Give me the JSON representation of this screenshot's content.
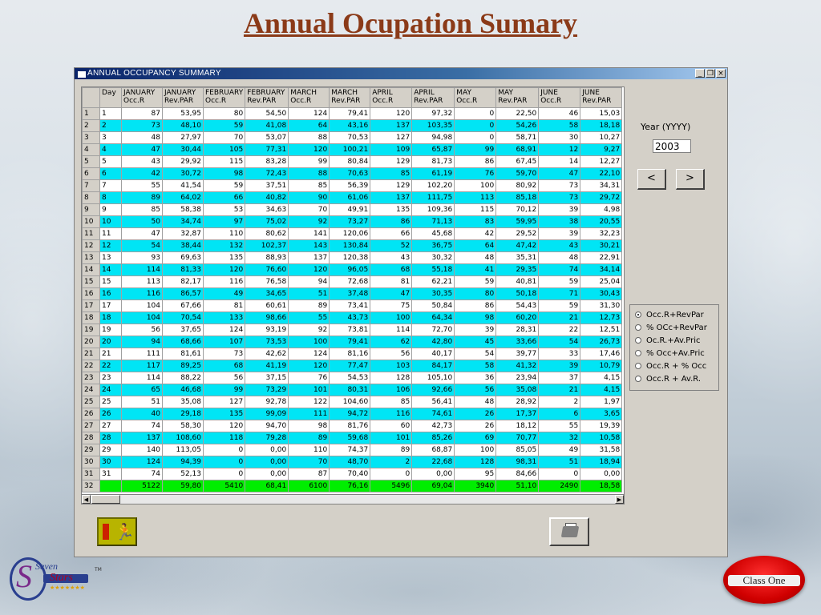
{
  "slide": {
    "title": "Annual Ocupation Sumary"
  },
  "window": {
    "title": "ANNUAL OCCUPANCY SUMMARY",
    "buttons": {
      "minimize": "_",
      "restore": "❐",
      "close": "×"
    }
  },
  "table": {
    "headers": [
      [
        "",
        ""
      ],
      [
        "Day",
        ""
      ],
      [
        "JANUARY",
        "Occ.R"
      ],
      [
        "JANUARY",
        "Rev.PAR"
      ],
      [
        "FEBRUARY",
        "Occ.R"
      ],
      [
        "FEBRUARY",
        "Rev.PAR"
      ],
      [
        "MARCH",
        "Occ.R"
      ],
      [
        "MARCH",
        "Rev.PAR"
      ],
      [
        "APRIL",
        "Occ.R"
      ],
      [
        "APRIL",
        "Rev.PAR"
      ],
      [
        "MAY",
        "Occ.R"
      ],
      [
        "MAY",
        "Rev.PAR"
      ],
      [
        "JUNE",
        "Occ.R"
      ],
      [
        "JUNE",
        "Rev.PAR"
      ]
    ],
    "rows": [
      [
        "1",
        "1",
        "87",
        "53,95",
        "80",
        "54,50",
        "124",
        "79,41",
        "120",
        "97,32",
        "0",
        "22,50",
        "46",
        "15,03"
      ],
      [
        "2",
        "2",
        "73",
        "48,10",
        "59",
        "41,08",
        "64",
        "43,16",
        "137",
        "103,35",
        "0",
        "54,26",
        "58",
        "18,18"
      ],
      [
        "3",
        "3",
        "48",
        "27,97",
        "70",
        "53,07",
        "88",
        "70,53",
        "127",
        "94,98",
        "0",
        "58,71",
        "30",
        "10,27"
      ],
      [
        "4",
        "4",
        "47",
        "30,44",
        "105",
        "77,31",
        "120",
        "100,21",
        "109",
        "65,87",
        "99",
        "68,91",
        "12",
        "9,27"
      ],
      [
        "5",
        "5",
        "43",
        "29,92",
        "115",
        "83,28",
        "99",
        "80,84",
        "129",
        "81,73",
        "86",
        "67,45",
        "14",
        "12,27"
      ],
      [
        "6",
        "6",
        "42",
        "30,72",
        "98",
        "72,43",
        "88",
        "70,63",
        "85",
        "61,19",
        "76",
        "59,70",
        "47",
        "22,10"
      ],
      [
        "7",
        "7",
        "55",
        "41,54",
        "59",
        "37,51",
        "85",
        "56,39",
        "129",
        "102,20",
        "100",
        "80,92",
        "73",
        "34,31"
      ],
      [
        "8",
        "8",
        "89",
        "64,02",
        "66",
        "40,82",
        "90",
        "61,06",
        "137",
        "111,75",
        "113",
        "85,18",
        "73",
        "29,72"
      ],
      [
        "9",
        "9",
        "85",
        "58,38",
        "53",
        "34,63",
        "70",
        "49,91",
        "135",
        "109,36",
        "115",
        "70,12",
        "39",
        "4,98"
      ],
      [
        "10",
        "10",
        "50",
        "34,74",
        "97",
        "75,02",
        "92",
        "73,27",
        "86",
        "71,13",
        "83",
        "59,95",
        "38",
        "20,55"
      ],
      [
        "11",
        "11",
        "47",
        "32,87",
        "110",
        "80,62",
        "141",
        "120,06",
        "66",
        "45,68",
        "42",
        "29,52",
        "39",
        "32,23"
      ],
      [
        "12",
        "12",
        "54",
        "38,44",
        "132",
        "102,37",
        "143",
        "130,84",
        "52",
        "36,75",
        "64",
        "47,42",
        "43",
        "30,21"
      ],
      [
        "13",
        "13",
        "93",
        "69,63",
        "135",
        "88,93",
        "137",
        "120,38",
        "43",
        "30,32",
        "48",
        "35,31",
        "48",
        "22,91"
      ],
      [
        "14",
        "14",
        "114",
        "81,33",
        "120",
        "76,60",
        "120",
        "96,05",
        "68",
        "55,18",
        "41",
        "29,35",
        "74",
        "34,14"
      ],
      [
        "15",
        "15",
        "113",
        "82,17",
        "116",
        "76,58",
        "94",
        "72,68",
        "81",
        "62,21",
        "59",
        "40,81",
        "59",
        "25,04"
      ],
      [
        "16",
        "16",
        "116",
        "86,57",
        "49",
        "34,65",
        "51",
        "37,48",
        "47",
        "30,35",
        "80",
        "50,18",
        "71",
        "30,43"
      ],
      [
        "17",
        "17",
        "104",
        "67,66",
        "81",
        "60,61",
        "89",
        "73,41",
        "75",
        "50,84",
        "86",
        "54,43",
        "59",
        "31,30"
      ],
      [
        "18",
        "18",
        "104",
        "70,54",
        "133",
        "98,66",
        "55",
        "43,73",
        "100",
        "64,34",
        "98",
        "60,20",
        "21",
        "12,73"
      ],
      [
        "19",
        "19",
        "56",
        "37,65",
        "124",
        "93,19",
        "92",
        "73,81",
        "114",
        "72,70",
        "39",
        "28,31",
        "22",
        "12,51"
      ],
      [
        "20",
        "20",
        "94",
        "68,66",
        "107",
        "73,53",
        "100",
        "79,41",
        "62",
        "42,80",
        "45",
        "33,66",
        "54",
        "26,73"
      ],
      [
        "21",
        "21",
        "111",
        "81,61",
        "73",
        "42,62",
        "124",
        "81,16",
        "56",
        "40,17",
        "54",
        "39,77",
        "33",
        "17,46"
      ],
      [
        "22",
        "22",
        "117",
        "89,25",
        "68",
        "41,19",
        "120",
        "77,47",
        "103",
        "84,17",
        "58",
        "41,32",
        "39",
        "10,79"
      ],
      [
        "23",
        "23",
        "114",
        "88,22",
        "56",
        "37,15",
        "76",
        "54,53",
        "128",
        "105,10",
        "36",
        "23,94",
        "37",
        "4,15"
      ],
      [
        "24",
        "24",
        "65",
        "46,68",
        "99",
        "73,29",
        "101",
        "80,31",
        "106",
        "92,66",
        "56",
        "35,08",
        "21",
        "4,15"
      ],
      [
        "25",
        "25",
        "51",
        "35,08",
        "127",
        "92,78",
        "122",
        "104,60",
        "85",
        "56,41",
        "48",
        "28,92",
        "2",
        "1,97"
      ],
      [
        "26",
        "26",
        "40",
        "29,18",
        "135",
        "99,09",
        "111",
        "94,72",
        "116",
        "74,61",
        "26",
        "17,37",
        "6",
        "3,65"
      ],
      [
        "27",
        "27",
        "74",
        "58,30",
        "120",
        "94,70",
        "98",
        "81,76",
        "60",
        "42,73",
        "26",
        "18,12",
        "55",
        "19,39"
      ],
      [
        "28",
        "28",
        "137",
        "108,60",
        "118",
        "79,28",
        "89",
        "59,68",
        "101",
        "85,26",
        "69",
        "70,77",
        "32",
        "10,58"
      ],
      [
        "29",
        "29",
        "140",
        "113,05",
        "0",
        "0,00",
        "110",
        "74,37",
        "89",
        "68,87",
        "100",
        "85,05",
        "49",
        "31,58"
      ],
      [
        "30",
        "30",
        "124",
        "94,39",
        "0",
        "0,00",
        "70",
        "48,70",
        "2",
        "22,68",
        "128",
        "98,31",
        "51",
        "18,94"
      ],
      [
        "31",
        "31",
        "74",
        "52,13",
        "0",
        "0,00",
        "87",
        "70,40",
        "0",
        "0,00",
        "95",
        "84,66",
        "0",
        "0,00"
      ],
      [
        "32",
        "",
        "5122",
        "59,80",
        "5410",
        "68,41",
        "6100",
        "76,16",
        "5496",
        "69,04",
        "3940",
        "51,10",
        "2490",
        "18,58"
      ]
    ]
  },
  "scroll": {
    "left": "◀",
    "right": "▶"
  },
  "year": {
    "label": "Year (YYYY)",
    "value": "2003"
  },
  "nav": {
    "prev": "<",
    "next": ">"
  },
  "options": [
    {
      "label": "Occ.R+RevPar",
      "selected": true
    },
    {
      "label": "% OCc+RevPar",
      "selected": false
    },
    {
      "label": "Oc.R.+Av.Pric",
      "selected": false
    },
    {
      "label": "% Occ+Av.Pric",
      "selected": false
    },
    {
      "label": "Occ.R + % Occ",
      "selected": false
    },
    {
      "label": "Occ.R + Av.R.",
      "selected": false
    }
  ],
  "logos": {
    "left": {
      "line1": "Seven",
      "line2": "Stars",
      "stars": "★★★★★★★",
      "tm": "TM"
    },
    "right": {
      "text": "Class One"
    }
  },
  "colors": {
    "title": "#8b3a18",
    "alt_row": "#00e5f5",
    "total_row": "#00ee00",
    "titlebar": "#0a246a"
  }
}
